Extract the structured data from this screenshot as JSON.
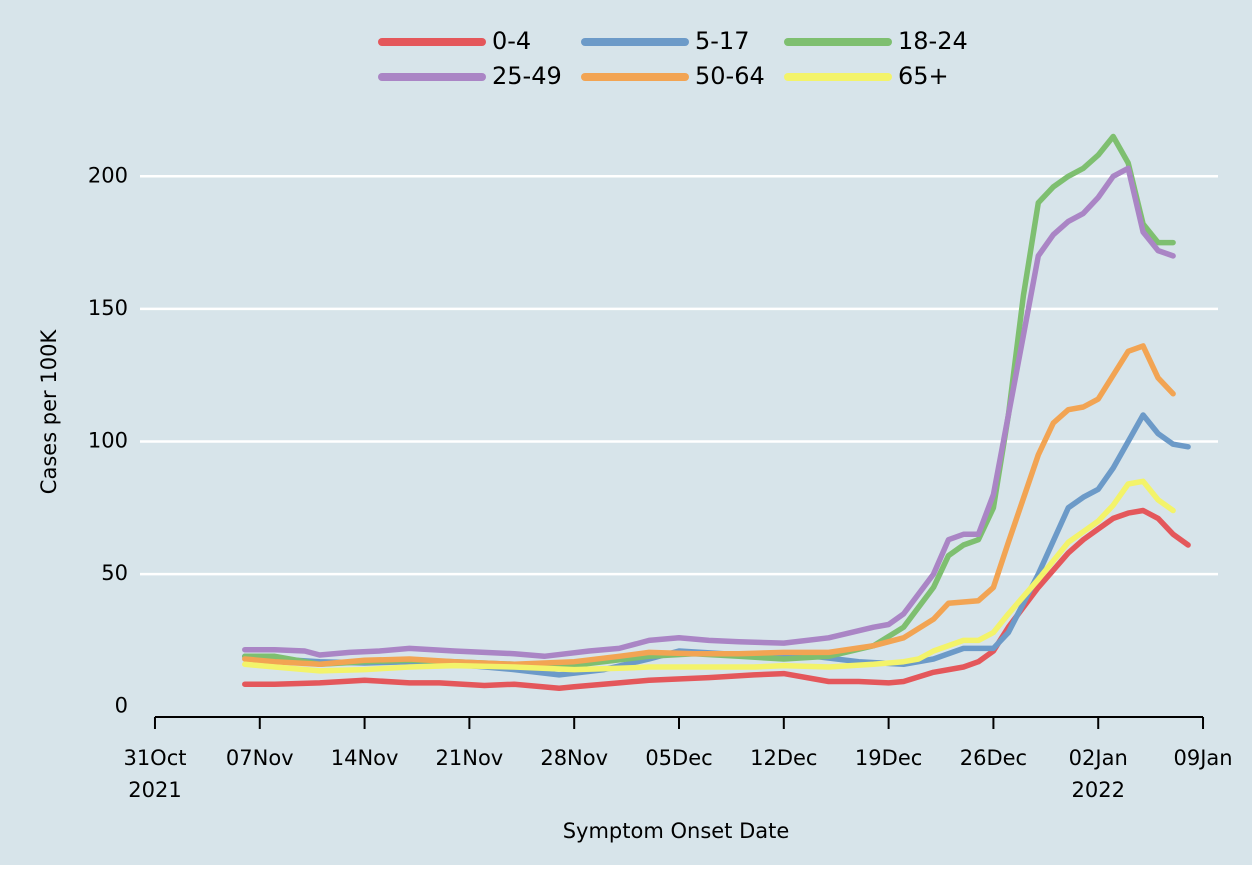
{
  "chart_data": {
    "type": "line",
    "title": "",
    "xlabel": "Symptom Onset Date",
    "ylabel": "Cases per 100K",
    "ylim": [
      -5,
      225
    ],
    "yticks": [
      0,
      50,
      100,
      150,
      200
    ],
    "xlim": [
      "2021-10-30",
      "2022-01-10"
    ],
    "xticks": [
      {
        "date": "2021-10-31",
        "label": "31Oct",
        "sublabel": "2021"
      },
      {
        "date": "2021-11-07",
        "label": "07Nov",
        "sublabel": ""
      },
      {
        "date": "2021-11-14",
        "label": "14Nov",
        "sublabel": ""
      },
      {
        "date": "2021-11-21",
        "label": "21Nov",
        "sublabel": ""
      },
      {
        "date": "2021-11-28",
        "label": "28Nov",
        "sublabel": ""
      },
      {
        "date": "2021-12-05",
        "label": "05Dec",
        "sublabel": ""
      },
      {
        "date": "2021-12-12",
        "label": "12Dec",
        "sublabel": ""
      },
      {
        "date": "2021-12-19",
        "label": "19Dec",
        "sublabel": ""
      },
      {
        "date": "2021-12-26",
        "label": "26Dec",
        "sublabel": ""
      },
      {
        "date": "2022-01-02",
        "label": "02Jan",
        "sublabel": "2022"
      },
      {
        "date": "2022-01-09",
        "label": "09Jan",
        "sublabel": ""
      }
    ],
    "grid": "horizontal",
    "legend": "top, 3 columns",
    "series": [
      {
        "name": "0-4",
        "color": "#e4575b",
        "points": [
          [
            "2021-11-06",
            8.5
          ],
          [
            "2021-11-08",
            8.5
          ],
          [
            "2021-11-11",
            9
          ],
          [
            "2021-11-14",
            10
          ],
          [
            "2021-11-17",
            9
          ],
          [
            "2021-11-19",
            9
          ],
          [
            "2021-11-22",
            8
          ],
          [
            "2021-11-24",
            8.5
          ],
          [
            "2021-11-27",
            7
          ],
          [
            "2021-11-28",
            7.5
          ],
          [
            "2021-12-01",
            9
          ],
          [
            "2021-12-03",
            10
          ],
          [
            "2021-12-07",
            11
          ],
          [
            "2021-12-10",
            12
          ],
          [
            "2021-12-12",
            12.5
          ],
          [
            "2021-12-15",
            9.5
          ],
          [
            "2021-12-17",
            9.5
          ],
          [
            "2021-12-19",
            9
          ],
          [
            "2021-12-20",
            9.5
          ],
          [
            "2021-12-22",
            13
          ],
          [
            "2021-12-24",
            15
          ],
          [
            "2021-12-25",
            17
          ],
          [
            "2021-12-26",
            21
          ],
          [
            "2021-12-27",
            30
          ],
          [
            "2021-12-29",
            45
          ],
          [
            "2021-12-31",
            58
          ],
          [
            "2022-01-01",
            63
          ],
          [
            "2022-01-02",
            67
          ],
          [
            "2022-01-03",
            71
          ],
          [
            "2022-01-04",
            73
          ],
          [
            "2022-01-05",
            74
          ],
          [
            "2022-01-06",
            71
          ],
          [
            "2022-01-07",
            65
          ],
          [
            "2022-01-08",
            61
          ]
        ]
      },
      {
        "name": "5-17",
        "color": "#6c9ac8",
        "points": [
          [
            "2021-11-06",
            19
          ],
          [
            "2021-11-08",
            18
          ],
          [
            "2021-11-11",
            17
          ],
          [
            "2021-11-14",
            16.5
          ],
          [
            "2021-11-17",
            17
          ],
          [
            "2021-11-20",
            16
          ],
          [
            "2021-11-24",
            14
          ],
          [
            "2021-11-27",
            12
          ],
          [
            "2021-11-30",
            14
          ],
          [
            "2021-12-03",
            18
          ],
          [
            "2021-12-05",
            21
          ],
          [
            "2021-12-08",
            20
          ],
          [
            "2021-12-11",
            19
          ],
          [
            "2021-12-14",
            19
          ],
          [
            "2021-12-17",
            17
          ],
          [
            "2021-12-20",
            16
          ],
          [
            "2021-12-22",
            18
          ],
          [
            "2021-12-24",
            22
          ],
          [
            "2021-12-26",
            22
          ],
          [
            "2021-12-27",
            28
          ],
          [
            "2021-12-29",
            50
          ],
          [
            "2021-12-31",
            75
          ],
          [
            "2022-01-01",
            79
          ],
          [
            "2022-01-02",
            82
          ],
          [
            "2022-01-03",
            90
          ],
          [
            "2022-01-04",
            100
          ],
          [
            "2022-01-05",
            110
          ],
          [
            "2022-01-06",
            103
          ],
          [
            "2022-01-07",
            99
          ],
          [
            "2022-01-08",
            98
          ]
        ]
      },
      {
        "name": "18-24",
        "color": "#7ebf70",
        "points": [
          [
            "2021-11-06",
            19
          ],
          [
            "2021-11-08",
            19
          ],
          [
            "2021-11-11",
            16
          ],
          [
            "2021-11-14",
            17
          ],
          [
            "2021-11-17",
            17.5
          ],
          [
            "2021-11-20",
            17
          ],
          [
            "2021-11-24",
            16
          ],
          [
            "2021-11-27",
            15
          ],
          [
            "2021-11-30",
            17
          ],
          [
            "2021-12-03",
            19
          ],
          [
            "2021-12-06",
            20
          ],
          [
            "2021-12-09",
            19
          ],
          [
            "2021-12-12",
            18
          ],
          [
            "2021-12-15",
            19
          ],
          [
            "2021-12-18",
            23
          ],
          [
            "2021-12-20",
            30
          ],
          [
            "2021-12-22",
            45
          ],
          [
            "2021-12-23",
            57
          ],
          [
            "2021-12-24",
            61
          ],
          [
            "2021-12-25",
            63
          ],
          [
            "2021-12-26",
            75
          ],
          [
            "2021-12-27",
            110
          ],
          [
            "2021-12-28",
            155
          ],
          [
            "2021-12-29",
            190
          ],
          [
            "2021-12-30",
            196
          ],
          [
            "2021-12-31",
            200
          ],
          [
            "2022-01-01",
            203
          ],
          [
            "2022-01-02",
            208
          ],
          [
            "2022-01-03",
            215
          ],
          [
            "2022-01-04",
            205
          ],
          [
            "2022-01-05",
            182
          ],
          [
            "2022-01-06",
            175
          ],
          [
            "2022-01-07",
            175
          ]
        ]
      },
      {
        "name": "25-49",
        "color": "#aa85c5",
        "points": [
          [
            "2021-11-06",
            21.5
          ],
          [
            "2021-11-08",
            21.5
          ],
          [
            "2021-11-10",
            21
          ],
          [
            "2021-11-11",
            19.5
          ],
          [
            "2021-11-13",
            20.5
          ],
          [
            "2021-11-15",
            21
          ],
          [
            "2021-11-17",
            22
          ],
          [
            "2021-11-20",
            21
          ],
          [
            "2021-11-24",
            20
          ],
          [
            "2021-11-26",
            19
          ],
          [
            "2021-11-29",
            21
          ],
          [
            "2021-12-01",
            22
          ],
          [
            "2021-12-03",
            25
          ],
          [
            "2021-12-05",
            26
          ],
          [
            "2021-12-07",
            25
          ],
          [
            "2021-12-09",
            24.5
          ],
          [
            "2021-12-12",
            24
          ],
          [
            "2021-12-15",
            26
          ],
          [
            "2021-12-18",
            30
          ],
          [
            "2021-12-19",
            31
          ],
          [
            "2021-12-20",
            35
          ],
          [
            "2021-12-22",
            50
          ],
          [
            "2021-12-23",
            63
          ],
          [
            "2021-12-24",
            65
          ],
          [
            "2021-12-25",
            65
          ],
          [
            "2021-12-26",
            80
          ],
          [
            "2021-12-27",
            110
          ],
          [
            "2021-12-28",
            140
          ],
          [
            "2021-12-29",
            170
          ],
          [
            "2021-12-30",
            178
          ],
          [
            "2021-12-31",
            183
          ],
          [
            "2022-01-01",
            186
          ],
          [
            "2022-01-02",
            192
          ],
          [
            "2022-01-03",
            200
          ],
          [
            "2022-01-04",
            203
          ],
          [
            "2022-01-05",
            179
          ],
          [
            "2022-01-06",
            172
          ],
          [
            "2022-01-07",
            170
          ]
        ]
      },
      {
        "name": "50-64",
        "color": "#f2a453",
        "points": [
          [
            "2021-11-06",
            18
          ],
          [
            "2021-11-08",
            17
          ],
          [
            "2021-11-11",
            16
          ],
          [
            "2021-11-14",
            17.5
          ],
          [
            "2021-11-17",
            18
          ],
          [
            "2021-11-20",
            17
          ],
          [
            "2021-11-24",
            16
          ],
          [
            "2021-11-28",
            17
          ],
          [
            "2021-12-01",
            19
          ],
          [
            "2021-12-03",
            20.5
          ],
          [
            "2021-12-06",
            20
          ],
          [
            "2021-12-09",
            20
          ],
          [
            "2021-12-12",
            20.5
          ],
          [
            "2021-12-15",
            20.5
          ],
          [
            "2021-12-18",
            23
          ],
          [
            "2021-12-20",
            26
          ],
          [
            "2021-12-22",
            33
          ],
          [
            "2021-12-23",
            39
          ],
          [
            "2021-12-25",
            40
          ],
          [
            "2021-12-26",
            45
          ],
          [
            "2021-12-27",
            62
          ],
          [
            "2021-12-29",
            95
          ],
          [
            "2021-12-30",
            107
          ],
          [
            "2021-12-31",
            112
          ],
          [
            "2022-01-01",
            113
          ],
          [
            "2022-01-02",
            116
          ],
          [
            "2022-01-03",
            125
          ],
          [
            "2022-01-04",
            134
          ],
          [
            "2022-01-05",
            136
          ],
          [
            "2022-01-06",
            124
          ],
          [
            "2022-01-07",
            118
          ]
        ]
      },
      {
        "name": "65+",
        "color": "#f3f36a",
        "points": [
          [
            "2021-11-06",
            16
          ],
          [
            "2021-11-08",
            15
          ],
          [
            "2021-11-11",
            13.5
          ],
          [
            "2021-11-14",
            14
          ],
          [
            "2021-11-17",
            15
          ],
          [
            "2021-11-20",
            15.5
          ],
          [
            "2021-11-24",
            15
          ],
          [
            "2021-11-28",
            14
          ],
          [
            "2021-12-01",
            14.5
          ],
          [
            "2021-12-03",
            15
          ],
          [
            "2021-12-07",
            15
          ],
          [
            "2021-12-10",
            15
          ],
          [
            "2021-12-12",
            15.5
          ],
          [
            "2021-12-15",
            15
          ],
          [
            "2021-12-18",
            16
          ],
          [
            "2021-12-20",
            17
          ],
          [
            "2021-12-21",
            18
          ],
          [
            "2021-12-22",
            21
          ],
          [
            "2021-12-24",
            25
          ],
          [
            "2021-12-25",
            25
          ],
          [
            "2021-12-26",
            28
          ],
          [
            "2021-12-27",
            35
          ],
          [
            "2021-12-29",
            48
          ],
          [
            "2021-12-31",
            62
          ],
          [
            "2022-01-01",
            66
          ],
          [
            "2022-01-02",
            70
          ],
          [
            "2022-01-03",
            76
          ],
          [
            "2022-01-04",
            84
          ],
          [
            "2022-01-05",
            85
          ],
          [
            "2022-01-06",
            78
          ],
          [
            "2022-01-07",
            74
          ]
        ]
      }
    ]
  }
}
